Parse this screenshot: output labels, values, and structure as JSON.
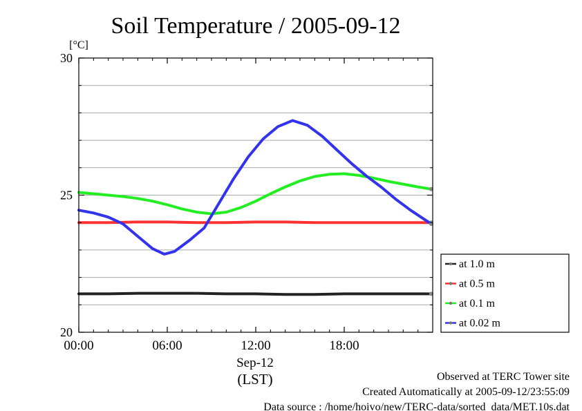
{
  "chart_data": {
    "type": "line",
    "title": "Soil Temperature / 2005-09-12",
    "ylabel": "[°C]",
    "ylim": [
      20,
      30
    ],
    "y_ticks": [
      {
        "value": 20,
        "label": "20"
      },
      {
        "value": 25,
        "label": "25"
      },
      {
        "value": 30,
        "label": "30"
      }
    ],
    "y_minor_ticks": [
      21,
      22,
      23,
      24,
      26,
      27,
      28,
      29
    ],
    "xlim": [
      0,
      24
    ],
    "x_ticks": [
      {
        "value": 0,
        "label": "00:00"
      },
      {
        "value": 6,
        "label": "06:00"
      },
      {
        "value": 12,
        "label": "12:00"
      },
      {
        "value": 18,
        "label": "18:00"
      }
    ],
    "x_date_label": "Sep-12",
    "x_unit_label": "(LST)",
    "grid": "horizontal",
    "legend_position": "right",
    "series": [
      {
        "name": "at 1.0 m",
        "color": "#222222",
        "x": [
          0,
          2,
          4,
          6,
          8,
          10,
          12,
          14,
          16,
          18,
          20,
          22,
          23.9
        ],
        "values": [
          21.4,
          21.4,
          21.42,
          21.42,
          21.42,
          21.4,
          21.4,
          21.38,
          21.38,
          21.4,
          21.4,
          21.4,
          21.4
        ]
      },
      {
        "name": "at 0.5 m",
        "color": "#ff3030",
        "x": [
          0,
          2,
          4,
          6,
          8,
          10,
          12,
          14,
          16,
          18,
          20,
          22,
          23.9
        ],
        "values": [
          24.0,
          24.0,
          24.02,
          24.02,
          24.0,
          24.0,
          24.02,
          24.02,
          24.0,
          24.0,
          24.0,
          24.0,
          24.0
        ]
      },
      {
        "name": "at 0.1 m",
        "color": "#22ee22",
        "x": [
          0,
          1,
          2,
          3,
          4,
          5,
          6,
          7,
          8,
          9,
          10,
          11,
          12,
          13,
          14,
          15,
          16,
          17,
          18,
          19,
          20,
          21,
          22,
          23,
          23.9
        ],
        "values": [
          25.1,
          25.05,
          25.0,
          24.95,
          24.88,
          24.78,
          24.65,
          24.5,
          24.38,
          24.32,
          24.38,
          24.55,
          24.78,
          25.05,
          25.3,
          25.52,
          25.68,
          25.76,
          25.78,
          25.72,
          25.62,
          25.5,
          25.4,
          25.3,
          25.22
        ]
      },
      {
        "name": "at 0.02 m",
        "color": "#3333ee",
        "x": [
          0,
          1,
          2,
          3,
          4,
          5,
          5.8,
          6.5,
          7.5,
          8.5,
          9.5,
          10.5,
          11.5,
          12.5,
          13.5,
          14.5,
          15.5,
          16.5,
          17.5,
          18.5,
          19.5,
          20.5,
          21.5,
          22.5,
          23.9
        ],
        "values": [
          24.45,
          24.35,
          24.2,
          23.95,
          23.5,
          23.05,
          22.85,
          22.95,
          23.35,
          23.8,
          24.7,
          25.6,
          26.4,
          27.05,
          27.5,
          27.72,
          27.55,
          27.15,
          26.65,
          26.15,
          25.7,
          25.3,
          24.85,
          24.45,
          23.95
        ]
      }
    ]
  },
  "footer": {
    "observed": "Observed at TERC Tower site",
    "created": "Created Automatically at 2005-09-12/23:55:09",
    "source": "Data source : /home/hoivo/new/TERC-data/sorted_data/MET.10s.dat"
  }
}
